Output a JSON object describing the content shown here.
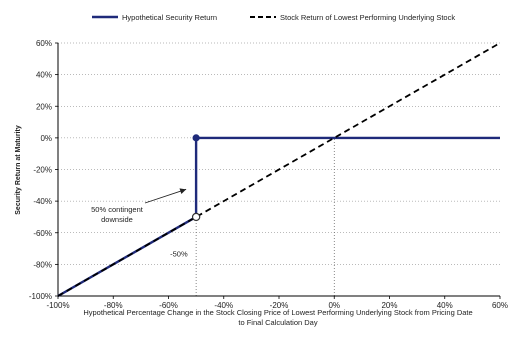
{
  "chart_data": {
    "type": "line",
    "xlabel": [
      "Hypothetical Percentage Change in the Stock Closing Price of Lowest Performing Underlying Stock from Pricing Date",
      "to Final Calculation Day"
    ],
    "ylabel": "Security Return at Maturity",
    "xlim": [
      -100,
      60
    ],
    "ylim": [
      -100,
      60
    ],
    "x_ticks": [
      -100,
      -80,
      -60,
      -40,
      -20,
      0,
      20,
      40,
      60
    ],
    "x_tick_labels": [
      "-100%",
      "-80%",
      "-60%",
      "-40%",
      "-20%",
      "0%",
      "20%",
      "40%",
      "60%"
    ],
    "y_ticks": [
      -100,
      -80,
      -60,
      -40,
      -20,
      0,
      20,
      40,
      60
    ],
    "y_tick_labels": [
      "-100%",
      "-80%",
      "-60%",
      "-40%",
      "-20%",
      "0%",
      "20%",
      "40%",
      "60%"
    ],
    "grid": "horizontal dotted",
    "legend_position": "top",
    "series": [
      {
        "name": "Hypothetical Security Return",
        "color": "#1f2a7a",
        "style": "solid",
        "points": [
          [
            -100,
            -100
          ],
          [
            -50,
            -50
          ],
          [
            -50,
            0
          ],
          [
            60,
            0
          ]
        ]
      },
      {
        "name": "Stock Return of Lowest Performing Underlying Stock",
        "color": "#000000",
        "style": "dashed",
        "points": [
          [
            -100,
            -100
          ],
          [
            60,
            60
          ]
        ]
      }
    ],
    "markers": [
      {
        "x": -50,
        "y": 0,
        "style": "filled",
        "color": "#1f2a7a"
      },
      {
        "x": -50,
        "y": -50,
        "style": "open",
        "color": "#1f2a7a"
      }
    ],
    "reference_lines": [
      {
        "x": -50,
        "y_from": -100,
        "y_to": -50,
        "label": "-50%"
      },
      {
        "x": 0,
        "y_from": -100,
        "y_to": 0
      }
    ],
    "annotations": [
      {
        "text_lines": [
          "50% contingent",
          "downside"
        ],
        "arrow_to": [
          -50,
          -30
        ]
      }
    ]
  }
}
